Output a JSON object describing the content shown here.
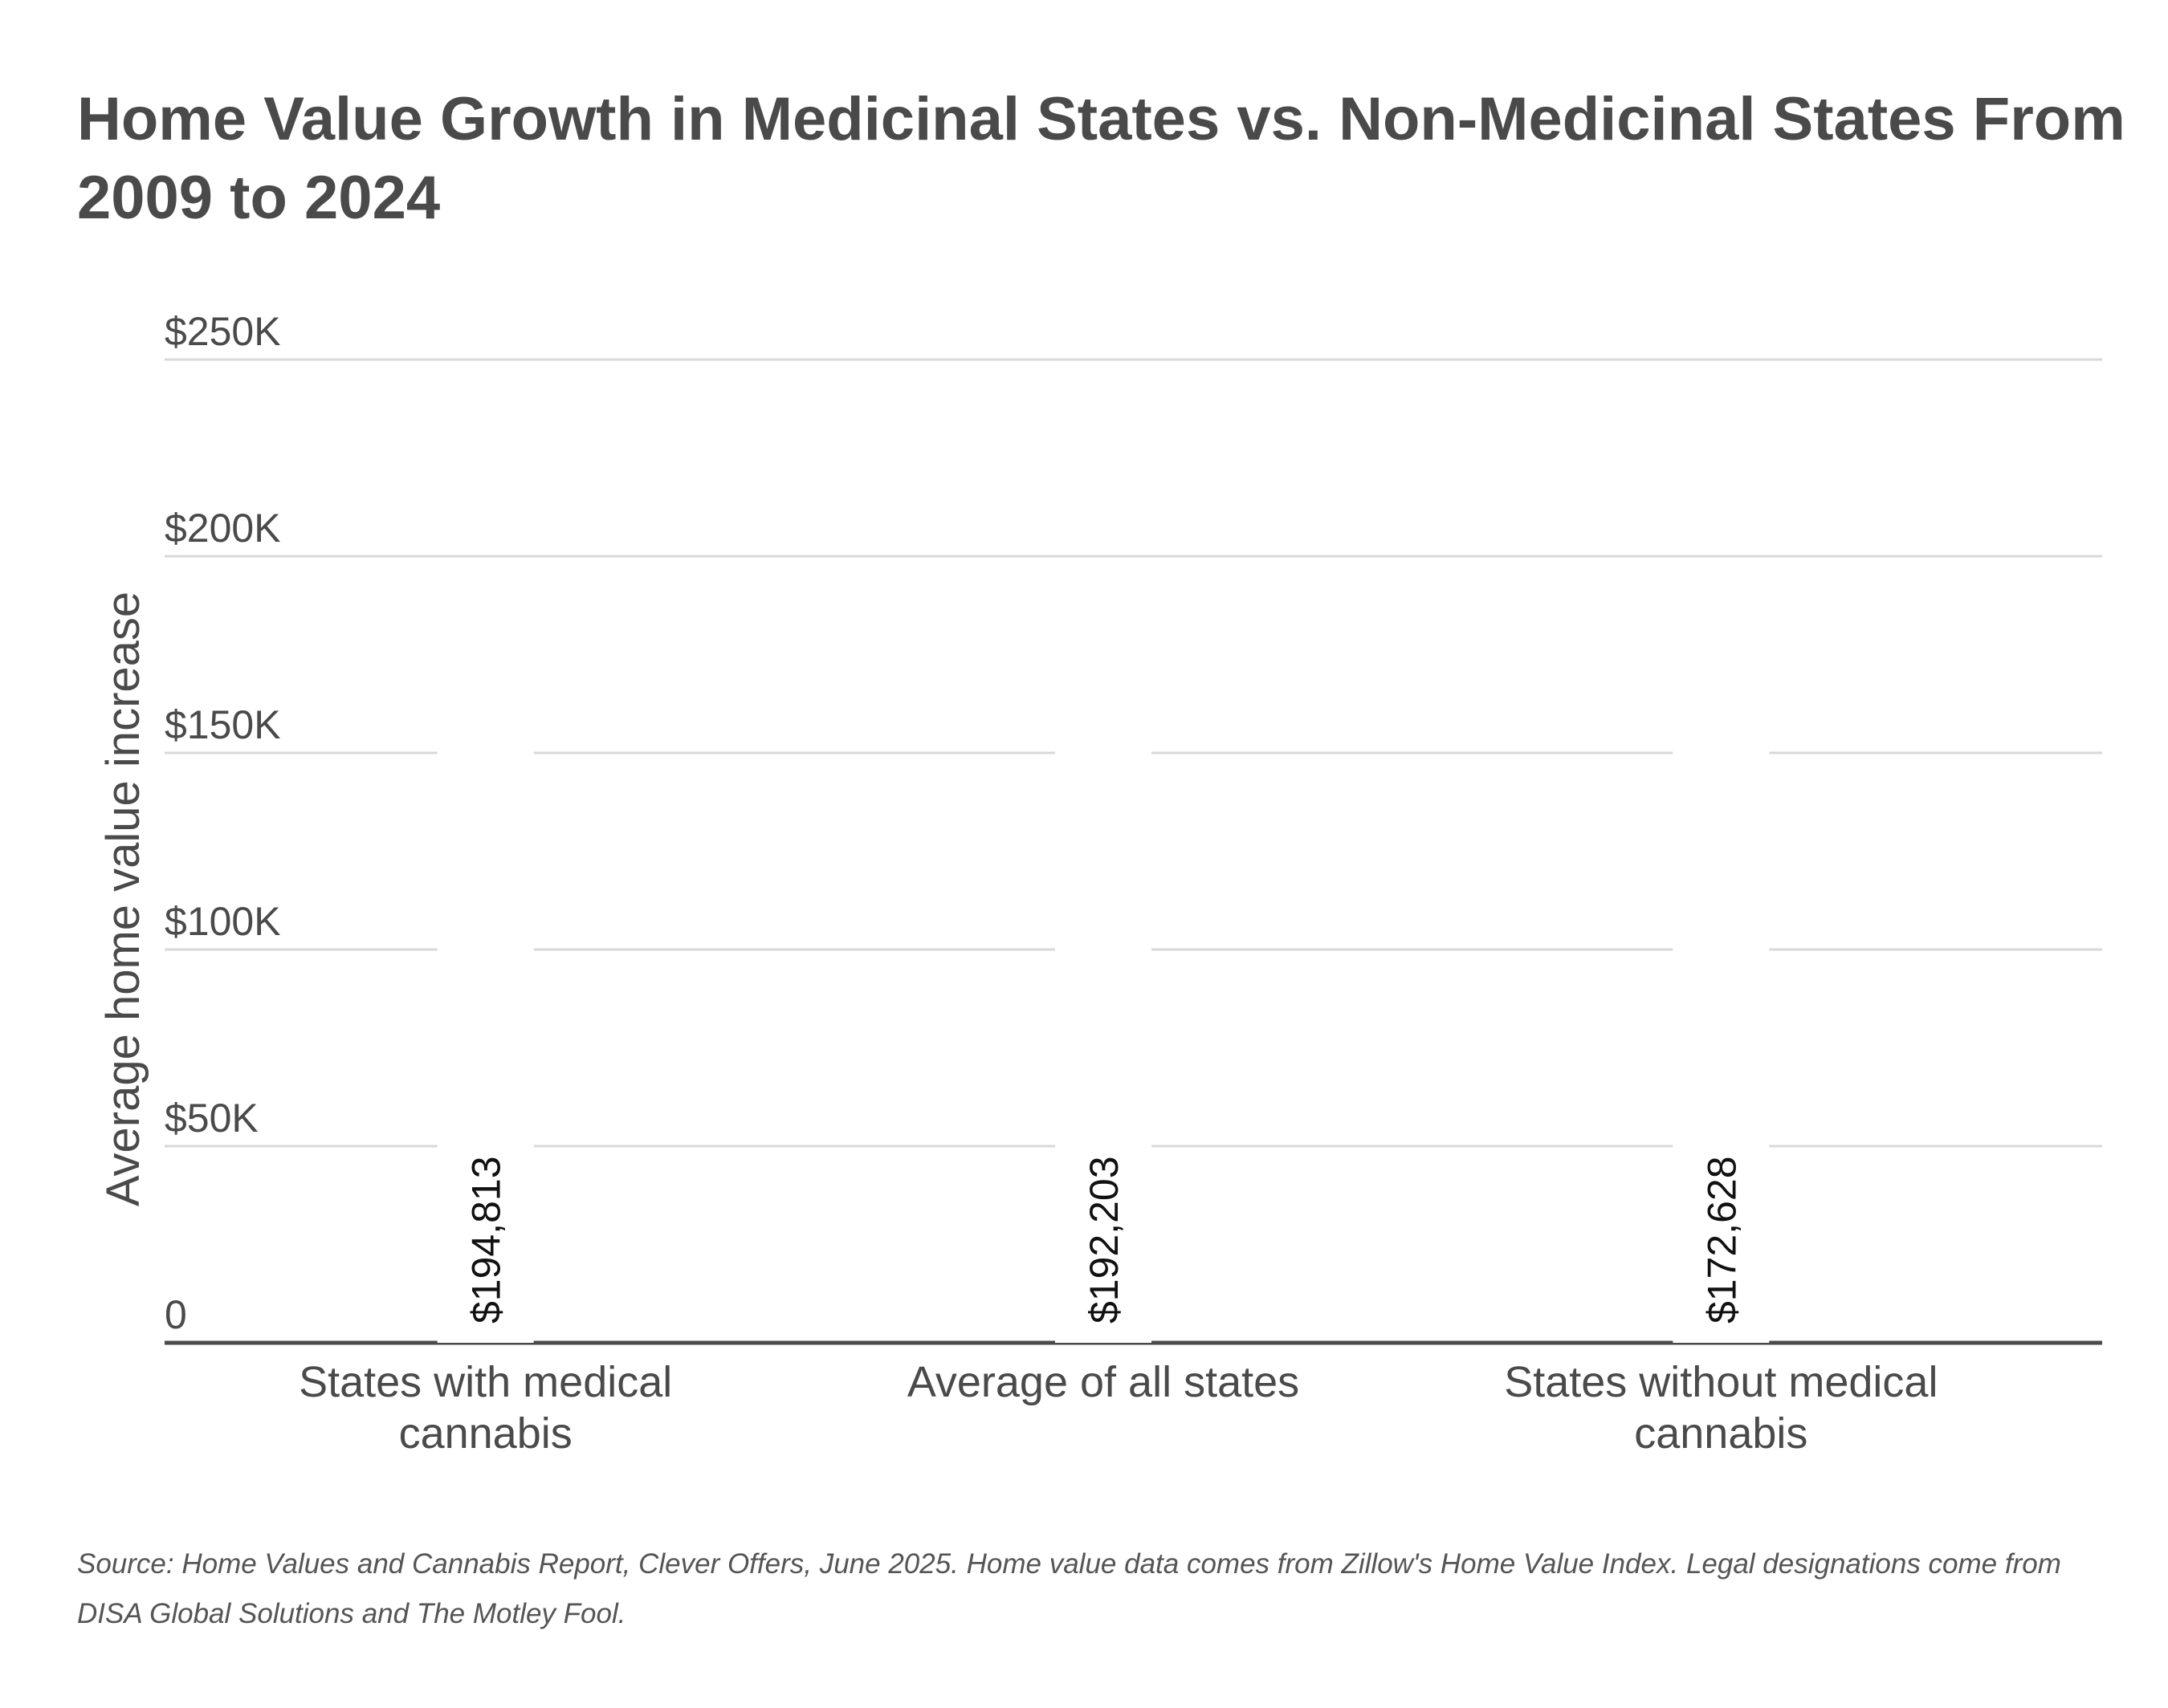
{
  "chart_data": {
    "type": "bar",
    "title": "Home Value Growth in Medicinal States vs. Non-Medicinal States From 2009 to 2024",
    "xlabel": "",
    "ylabel": "Average home value increase",
    "ylim": [
      0,
      250000
    ],
    "y_ticks": [
      0,
      50000,
      100000,
      150000,
      200000,
      250000
    ],
    "y_tick_labels": [
      "0",
      "$50K",
      "$100K",
      "$150K",
      "$200K",
      "$250K"
    ],
    "grid": true,
    "categories": [
      [
        "States with medical",
        "cannabis"
      ],
      [
        "Average of all states"
      ],
      [
        "States without medical",
        "cannabis"
      ]
    ],
    "values": [
      194813,
      192203,
      172628
    ],
    "data_labels": [
      "$194,813",
      "$192,203",
      "$172,628"
    ],
    "bar_color": "#ffffff"
  },
  "source": "Source: Home Values and Cannabis Report, Clever Offers, June 2025. Home value data comes from Zillow's Home Value Index. Legal designations come from DISA Global Solutions and The Motley Fool.",
  "colors": {
    "text": "#4a4a4a",
    "gridline": "#d9d9d9",
    "baseline": "#4a4a4a",
    "data_label": "#111111"
  }
}
